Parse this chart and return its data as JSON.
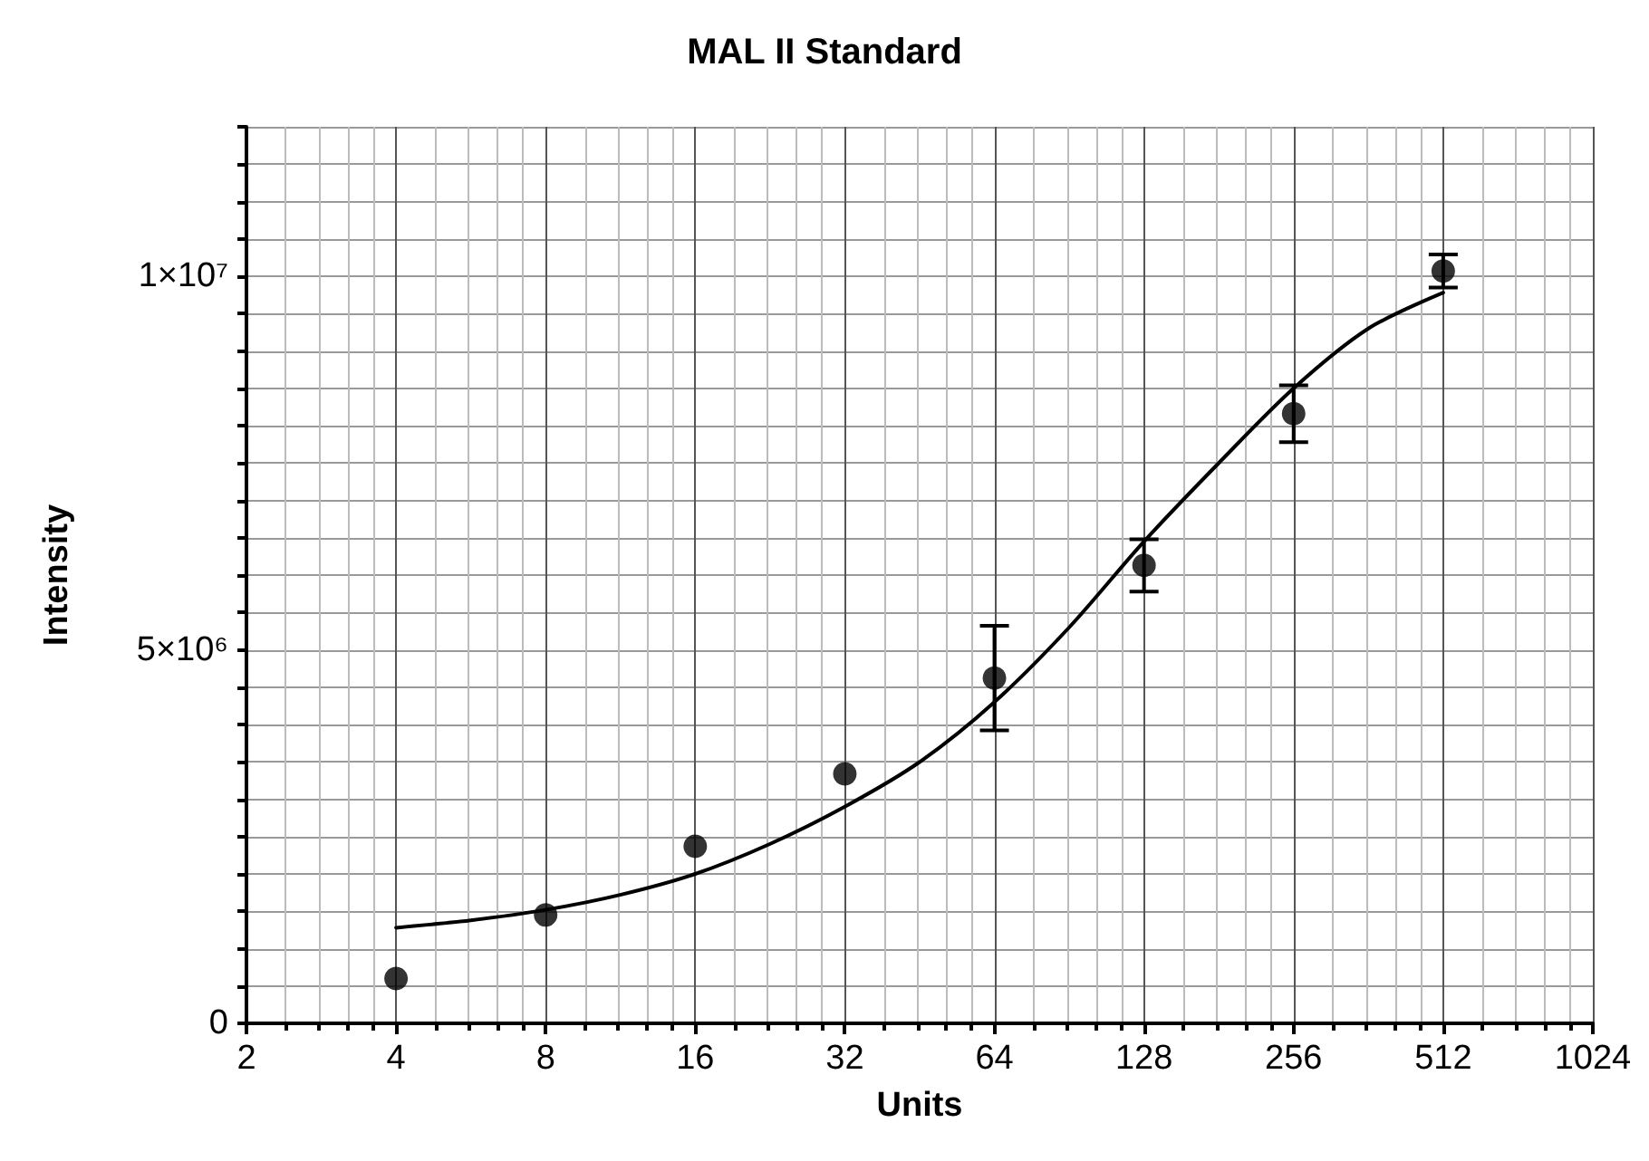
{
  "chart_data": {
    "type": "scatter",
    "title": "MAL II Standard",
    "xlabel": "Units",
    "ylabel": "Intensity",
    "log": "x",
    "grid": true,
    "marker": "circle",
    "xlim": [
      2,
      1024
    ],
    "xticks": [
      2,
      4,
      8,
      16,
      32,
      64,
      128,
      256,
      512,
      1024
    ],
    "ylim": [
      0,
      12000000
    ],
    "yticks": [
      {
        "value": 0,
        "label": "0"
      },
      {
        "value": 500000,
        "label": null
      },
      {
        "value": 1000000,
        "label": null
      },
      {
        "value": 1500000,
        "label": null
      },
      {
        "value": 2000000,
        "label": null
      },
      {
        "value": 2500000,
        "label": null
      },
      {
        "value": 3000000,
        "label": null
      },
      {
        "value": 3500000,
        "label": null
      },
      {
        "value": 4000000,
        "label": null
      },
      {
        "value": 4500000,
        "label": null
      },
      {
        "value": 5000000,
        "label": "5×10⁶"
      },
      {
        "value": 5500000,
        "label": null
      },
      {
        "value": 6000000,
        "label": null
      },
      {
        "value": 6500000,
        "label": null
      },
      {
        "value": 7000000,
        "label": null
      },
      {
        "value": 7500000,
        "label": null
      },
      {
        "value": 8000000,
        "label": null
      },
      {
        "value": 8500000,
        "label": null
      },
      {
        "value": 9000000,
        "label": null
      },
      {
        "value": 9500000,
        "label": null
      },
      {
        "value": 10000000,
        "label": "1×10⁷"
      },
      {
        "value": 10500000,
        "label": null
      },
      {
        "value": 11000000,
        "label": null
      },
      {
        "value": 11500000,
        "label": null
      },
      {
        "value": 12000000,
        "label": null
      }
    ],
    "series": [
      {
        "color": "#000000",
        "x": [
          4,
          8,
          16,
          32,
          64,
          128,
          256,
          512
        ],
        "values": [
          600000,
          1450000,
          2370000,
          3340000,
          4620000,
          6130000,
          8160000,
          10070000
        ],
        "errors": [
          null,
          null,
          null,
          null,
          700000,
          350000,
          380000,
          220000
        ]
      },
      {
        "type": "line",
        "color": "#000000",
        "marker": "none",
        "line_style": "solid",
        "x": [
          4,
          5.66,
          8,
          11.3,
          16,
          22.6,
          32,
          45.3,
          64,
          90.5,
          128,
          181,
          256,
          362,
          512
        ],
        "values": [
          1280000,
          1380000,
          1520000,
          1720000,
          2000000,
          2400000,
          2900000,
          3500000,
          4300000,
          5300000,
          6450000,
          7500000,
          8500000,
          9300000,
          9780000
        ]
      }
    ]
  }
}
